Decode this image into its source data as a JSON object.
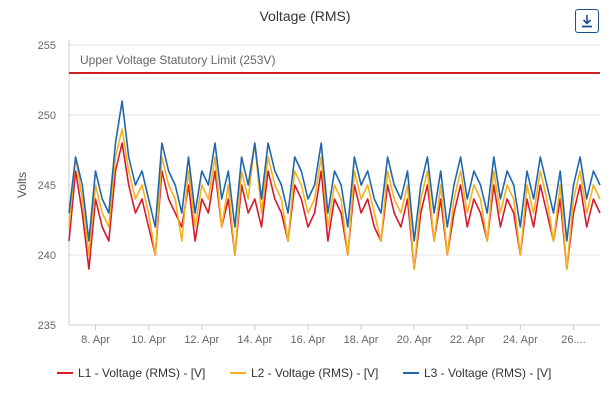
{
  "toolbar": {
    "download_icon": "download-icon"
  },
  "colors": {
    "L1": "#d7192d",
    "L2": "#f5b21c",
    "L3": "#2166ac",
    "limit": "#cc1f1f",
    "grid": "#e6e6e6"
  },
  "chart_data": {
    "type": "line",
    "title": "Voltage (RMS)",
    "ylabel": "Volts",
    "xlabel": "",
    "ylim": [
      235,
      255
    ],
    "yticks": [
      235,
      240,
      245,
      250,
      255
    ],
    "x_range_days": [
      7.0,
      27.0
    ],
    "xticks": [
      {
        "day": 8,
        "label": "8. Apr"
      },
      {
        "day": 10,
        "label": "10. Apr"
      },
      {
        "day": 12,
        "label": "12. Apr"
      },
      {
        "day": 14,
        "label": "14. Apr"
      },
      {
        "day": 16,
        "label": "16. Apr"
      },
      {
        "day": 18,
        "label": "18. Apr"
      },
      {
        "day": 20,
        "label": "20. Apr"
      },
      {
        "day": 22,
        "label": "22. Apr"
      },
      {
        "day": 24,
        "label": "24. Apr"
      },
      {
        "day": 26,
        "label": "26...."
      }
    ],
    "annotations": [
      {
        "label": "Upper Voltage Statutory Limit (253V)",
        "y": 253
      }
    ],
    "legend": [
      "L1 - Voltage (RMS) - [V]",
      "L2 - Voltage (RMS) - [V]",
      "L3 - Voltage (RMS) - [V]"
    ],
    "series": [
      {
        "name": "L1 - Voltage (RMS) - [V]",
        "x": [
          7.0,
          7.25,
          7.5,
          7.75,
          8.0,
          8.25,
          8.5,
          8.75,
          9.0,
          9.25,
          9.5,
          9.75,
          10.0,
          10.25,
          10.5,
          10.75,
          11.0,
          11.25,
          11.5,
          11.75,
          12.0,
          12.25,
          12.5,
          12.75,
          13.0,
          13.25,
          13.5,
          13.75,
          14.0,
          14.25,
          14.5,
          14.75,
          15.0,
          15.25,
          15.5,
          15.75,
          16.0,
          16.25,
          16.5,
          16.75,
          17.0,
          17.25,
          17.5,
          17.75,
          18.0,
          18.25,
          18.5,
          18.75,
          19.0,
          19.25,
          19.5,
          19.75,
          20.0,
          20.25,
          20.5,
          20.75,
          21.0,
          21.25,
          21.5,
          21.75,
          22.0,
          22.25,
          22.5,
          22.75,
          23.0,
          23.25,
          23.5,
          23.75,
          24.0,
          24.25,
          24.5,
          24.75,
          25.0,
          25.25,
          25.5,
          25.75,
          26.0,
          26.25,
          26.5,
          26.75,
          27.0
        ],
        "values": [
          241,
          246,
          243,
          239,
          244,
          242,
          241,
          246,
          248,
          245,
          243,
          244,
          242,
          240,
          246,
          244,
          243,
          242,
          245,
          241,
          244,
          243,
          246,
          242,
          244,
          240,
          245,
          243,
          244,
          242,
          246,
          244,
          243,
          241,
          245,
          244,
          242,
          243,
          246,
          241,
          244,
          243,
          240,
          245,
          243,
          244,
          242,
          241,
          245,
          243,
          242,
          244,
          239,
          243,
          245,
          241,
          244,
          240,
          243,
          245,
          242,
          244,
          243,
          241,
          245,
          242,
          244,
          243,
          240,
          244,
          242,
          245,
          243,
          241,
          244,
          239,
          243,
          245,
          242,
          244,
          243
        ]
      },
      {
        "name": "L2 - Voltage (RMS) - [V]",
        "x": [
          7.0,
          7.25,
          7.5,
          7.75,
          8.0,
          8.25,
          8.5,
          8.75,
          9.0,
          9.25,
          9.5,
          9.75,
          10.0,
          10.25,
          10.5,
          10.75,
          11.0,
          11.25,
          11.5,
          11.75,
          12.0,
          12.25,
          12.5,
          12.75,
          13.0,
          13.25,
          13.5,
          13.75,
          14.0,
          14.25,
          14.5,
          14.75,
          15.0,
          15.25,
          15.5,
          15.75,
          16.0,
          16.25,
          16.5,
          16.75,
          17.0,
          17.25,
          17.5,
          17.75,
          18.0,
          18.25,
          18.5,
          18.75,
          19.0,
          19.25,
          19.5,
          19.75,
          20.0,
          20.25,
          20.5,
          20.75,
          21.0,
          21.25,
          21.5,
          21.75,
          22.0,
          22.25,
          22.5,
          22.75,
          23.0,
          23.25,
          23.5,
          23.75,
          24.0,
          24.25,
          24.5,
          24.75,
          25.0,
          25.25,
          25.5,
          25.75,
          26.0,
          26.25,
          26.5,
          26.75,
          27.0
        ],
        "values": [
          242,
          247,
          244,
          240,
          245,
          243,
          242,
          247,
          249,
          246,
          244,
          245,
          243,
          240,
          247,
          245,
          244,
          241,
          246,
          242,
          245,
          244,
          247,
          242,
          245,
          240,
          246,
          244,
          248,
          243,
          247,
          245,
          244,
          241,
          246,
          245,
          243,
          244,
          247,
          242,
          245,
          244,
          240,
          246,
          244,
          245,
          243,
          241,
          246,
          244,
          243,
          245,
          239,
          244,
          246,
          241,
          245,
          240,
          244,
          246,
          243,
          245,
          244,
          241,
          246,
          243,
          245,
          244,
          240,
          245,
          243,
          246,
          244,
          241,
          245,
          239,
          244,
          246,
          243,
          245,
          244
        ]
      },
      {
        "name": "L3 - Voltage (RMS) - [V]",
        "x": [
          7.0,
          7.25,
          7.5,
          7.75,
          8.0,
          8.25,
          8.5,
          8.75,
          9.0,
          9.25,
          9.5,
          9.75,
          10.0,
          10.25,
          10.5,
          10.75,
          11.0,
          11.25,
          11.5,
          11.75,
          12.0,
          12.25,
          12.5,
          12.75,
          13.0,
          13.25,
          13.5,
          13.75,
          14.0,
          14.25,
          14.5,
          14.75,
          15.0,
          15.25,
          15.5,
          15.75,
          16.0,
          16.25,
          16.5,
          16.75,
          17.0,
          17.25,
          17.5,
          17.75,
          18.0,
          18.25,
          18.5,
          18.75,
          19.0,
          19.25,
          19.5,
          19.75,
          20.0,
          20.25,
          20.5,
          20.75,
          21.0,
          21.25,
          21.5,
          21.75,
          22.0,
          22.25,
          22.5,
          22.75,
          23.0,
          23.25,
          23.5,
          23.75,
          24.0,
          24.25,
          24.5,
          24.75,
          25.0,
          25.25,
          25.5,
          25.75,
          26.0,
          26.25,
          26.5,
          26.75,
          27.0
        ],
        "values": [
          243,
          247,
          245,
          241,
          246,
          244,
          243,
          248,
          251,
          247,
          245,
          246,
          244,
          242,
          248,
          246,
          245,
          243,
          247,
          243,
          246,
          245,
          248,
          244,
          246,
          242,
          247,
          245,
          248,
          244,
          248,
          246,
          245,
          243,
          247,
          246,
          244,
          245,
          248,
          243,
          246,
          245,
          242,
          247,
          245,
          246,
          244,
          243,
          247,
          245,
          244,
          246,
          241,
          245,
          247,
          243,
          246,
          242,
          245,
          247,
          244,
          246,
          245,
          243,
          247,
          244,
          246,
          245,
          242,
          246,
          244,
          247,
          245,
          243,
          246,
          241,
          245,
          247,
          244,
          246,
          245
        ]
      }
    ]
  }
}
